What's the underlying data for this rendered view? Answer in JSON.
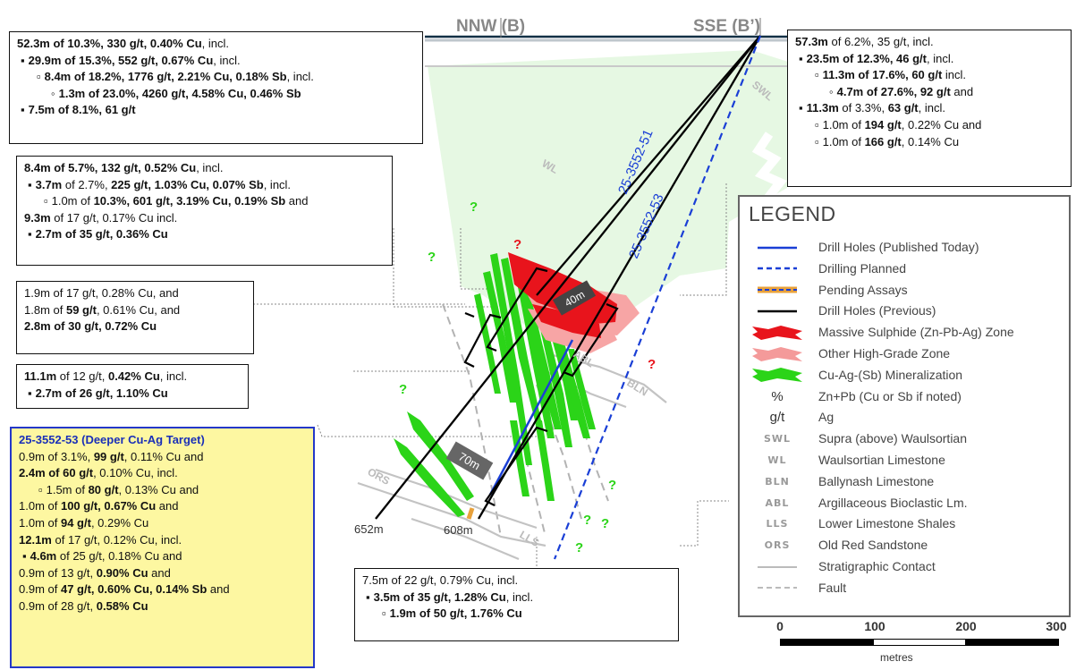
{
  "section": {
    "label_left": "NNW (B)",
    "label_right": "SSE (B’)",
    "holes": [
      {
        "id": "25-3552-51",
        "color": "#1a3fd6"
      },
      {
        "id": "25-3552-53",
        "color": "#1a3fd6"
      }
    ],
    "depths": {
      "hole_a": "652m",
      "hole_b": "608m"
    },
    "intervals": {
      "upper": "40m",
      "lower": "70m"
    },
    "units": {
      "swl": "SWL",
      "wl": "WL",
      "abl": "ABL",
      "bln": "BLN",
      "ors": "ORS",
      "lls": "LLS"
    },
    "unknown_marker": "?"
  },
  "intercepts": {
    "top_left": [
      {
        "level": 0,
        "html": "<b>52.3m of 10.3%, 330 g/t, 0.40% Cu</b>, incl."
      },
      {
        "level": 1,
        "html": "<b>29.9m of 15.3%, 552 g/t, 0.67% Cu</b>, incl."
      },
      {
        "level": 2,
        "html": "<b>8.4m of 18.2%, 1776 g/t, 2.21% Cu, 0.18% Sb</b>, incl."
      },
      {
        "level": 3,
        "html": "<b>1.3m of 23.0%, 4260 g/t, 4.58% Cu, 0.46% Sb</b>"
      },
      {
        "level": 1,
        "html": "<b>7.5m of 8.1%, 61 g/t</b>"
      }
    ],
    "top_right": [
      {
        "level": 0,
        "html": "<b>57.3m</b> of 6.2%, 35 g/t, incl."
      },
      {
        "level": 1,
        "html": "<b>23.5m of 12.3%, 46 g/t</b>, incl."
      },
      {
        "level": 2,
        "html": "<b>11.3m of 17.6%, 60 g/t</b> incl."
      },
      {
        "level": 3,
        "html": "<b>4.7m of 27.6%, 92 g/t</b> and"
      },
      {
        "level": 1,
        "html": "<b>11.3m</b> of 3.3%, <b>63 g/t</b>, incl."
      },
      {
        "level": 2,
        "html": "1.0m of <b>194 g/t</b>, 0.22% Cu and"
      },
      {
        "level": 2,
        "html": "1.0m of <b>166 g/t</b>, 0.14% Cu"
      }
    ],
    "left_2": [
      {
        "level": 0,
        "html": "<b>8.4m of 5.7%, 132 g/t, 0.52% Cu</b>, incl."
      },
      {
        "level": 1,
        "html": "<b>3.7m</b> of 2.7%, <b>225 g/t, 1.03% Cu, 0.07% Sb</b>, incl."
      },
      {
        "level": 2,
        "html": "1.0m of <b>10.3%, 601 g/t, 3.19% Cu, 0.19% Sb</b> and"
      },
      {
        "level": 0,
        "html": "<b>9.3m</b> of 17 g/t, 0.17% Cu incl."
      },
      {
        "level": 1,
        "html": "<b>2.7m of 35 g/t, 0.36% Cu</b>"
      }
    ],
    "left_3": [
      {
        "level": 0,
        "html": "1.9m of 17 g/t, 0.28% Cu, and"
      },
      {
        "level": 0,
        "html": "1.8m of <b>59 g/t</b>, 0.61% Cu, and"
      },
      {
        "level": 0,
        "html": "<b>2.8m of 30 g/t, 0.72% Cu</b>"
      }
    ],
    "left_4": [
      {
        "level": 0,
        "html": "<b>11.1m</b> of 12 g/t, <b>0.42% Cu</b>, incl."
      },
      {
        "level": 1,
        "html": "<b>2.7m of 26 g/t, 1.10% Cu</b>"
      }
    ],
    "highlight": [
      {
        "level": "hd",
        "html": "25-3552-53 (Deeper Cu-Ag Target)"
      },
      {
        "level": 0,
        "html": "0.9m of 3.1%, <b>99 g/t</b>, 0.11% Cu and"
      },
      {
        "level": 0,
        "html": "<b>2.4m of 60 g/t</b>, 0.10% Cu, incl."
      },
      {
        "level": 2,
        "html": "1.5m of <b>80 g/t</b>, 0.13% Cu and"
      },
      {
        "level": 0,
        "html": "1.0m of <b>100 g/t, 0.67% Cu</b> and"
      },
      {
        "level": 0,
        "html": "1.0m of <b>94 g/t</b>, 0.29% Cu"
      },
      {
        "level": 0,
        "html": "<b>12.1m</b> of 17 g/t, 0.12% Cu, incl."
      },
      {
        "level": 1,
        "html": "<b>4.6m</b> of 25 g/t, 0.18% Cu and"
      },
      {
        "level": 0,
        "html": "0.9m of 13 g/t, <b>0.90% Cu</b> and"
      },
      {
        "level": 0,
        "html": "0.9m of <b>47 g/t, 0.60% Cu, 0.14% Sb</b> and"
      },
      {
        "level": 0,
        "html": "0.9m of 28 g/t, <b>0.58% Cu</b>"
      }
    ],
    "bottom": [
      {
        "level": 0,
        "html": "7.5m of 22 g/t, 0.79% Cu, incl."
      },
      {
        "level": 1,
        "html": "<b>3.5m of 35 g/t, 1.28% Cu</b>, incl."
      },
      {
        "level": 2,
        "html": "<b>1.9m of 50 g/t, 1.76% Cu</b>"
      }
    ]
  },
  "legend": {
    "title": "LEGEND",
    "items": [
      {
        "sym": "line-solid",
        "color": "#1a3fd6",
        "label": "Drill Holes (Published Today)"
      },
      {
        "sym": "line-dash",
        "color": "#1a3fd6",
        "label": "Drilling Planned"
      },
      {
        "sym": "pending",
        "color": "#e8a13b",
        "label": "Pending Assays"
      },
      {
        "sym": "line-solid",
        "color": "#000000",
        "label": "Drill Holes (Previous)"
      },
      {
        "sym": "zone",
        "color": "#e8141c",
        "label": "Massive Sulphide (Zn-Pb-Ag) Zone"
      },
      {
        "sym": "zone",
        "color": "#f49a9a",
        "label": "Other High-Grade Zone"
      },
      {
        "sym": "zone",
        "color": "#2bd418",
        "label": "Cu-Ag-(Sb) Mineralization"
      },
      {
        "sym": "text",
        "text": "%",
        "label": "Zn+Pb (Cu or Sb if noted)"
      },
      {
        "sym": "text",
        "text": "g/t",
        "label": "Ag"
      },
      {
        "sym": "abbr",
        "text": "SWL",
        "label": "Supra (above) Waulsortian"
      },
      {
        "sym": "abbr",
        "text": "WL",
        "label": "Waulsortian Limestone"
      },
      {
        "sym": "abbr",
        "text": "BLN",
        "label": "Ballynash Limestone"
      },
      {
        "sym": "abbr",
        "text": "ABL",
        "label": "Argillaceous Bioclastic Lm."
      },
      {
        "sym": "abbr",
        "text": "LLS",
        "label": "Lower Limestone Shales"
      },
      {
        "sym": "abbr",
        "text": "ORS",
        "label": "Old Red Sandstone"
      },
      {
        "sym": "line-solid",
        "color": "#bbbbbb",
        "label": "Stratigraphic Contact"
      },
      {
        "sym": "line-dash",
        "color": "#bbbbbb",
        "label": "Fault"
      }
    ]
  },
  "scale": {
    "ticks": [
      "0",
      "100",
      "200",
      "300"
    ],
    "unit": "metres"
  }
}
